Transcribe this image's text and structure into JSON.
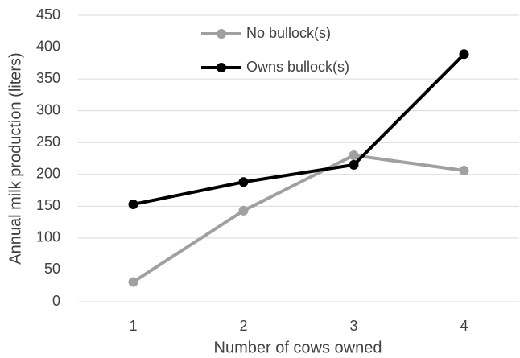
{
  "chart_data": {
    "type": "line",
    "x_label": "Number of cows owned",
    "y_label": "Annual milk production (liters)",
    "categories": [
      "1",
      "2",
      "3",
      "4"
    ],
    "series": [
      {
        "name": "No bullock(s)",
        "color": "#a0a0a0",
        "values": [
          31,
          143,
          230,
          206
        ]
      },
      {
        "name": "Owns bullock(s)",
        "color": "#000000",
        "values": [
          153,
          188,
          215,
          389
        ]
      }
    ],
    "ylim": [
      0,
      450
    ],
    "yticks": [
      0,
      50,
      100,
      150,
      200,
      250,
      300,
      350,
      400,
      450
    ],
    "grid": true,
    "legend": "top"
  }
}
